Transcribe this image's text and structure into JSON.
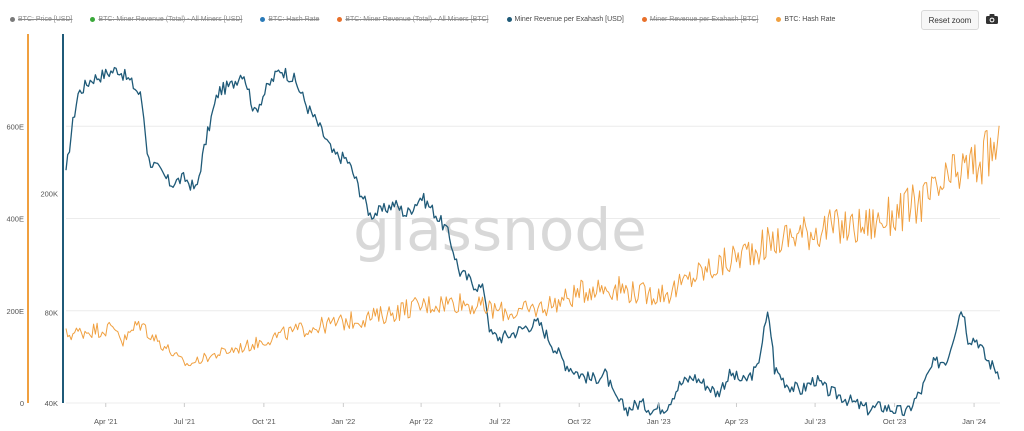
{
  "legend": {
    "items": [
      {
        "label": "BTC: Price [USD]",
        "color": "#7a7a7a",
        "visible": false
      },
      {
        "label": "BTC: Miner Revenue (Total) - All Miners [USD]",
        "color": "#3aa83a",
        "visible": false
      },
      {
        "label": "BTC: Hash Rate",
        "color": "#2a7ab8",
        "visible": false
      },
      {
        "label": "BTC: Miner Revenue (Total) - All Miners [BTC]",
        "color": "#e8702a",
        "visible": false
      },
      {
        "label": "Miner Revenue per Exahash [USD]",
        "color": "#1f5a78",
        "visible": true
      },
      {
        "label": "Miner Revenue per Exahash [BTC]",
        "color": "#e8702a",
        "visible": false
      },
      {
        "label": "BTC: Hash Rate",
        "color": "#f0a040",
        "visible": true
      }
    ]
  },
  "toolbar": {
    "reset_zoom_label": "Reset zoom",
    "camera_icon": "camera-icon"
  },
  "watermark": "glassnode",
  "chart_data": {
    "type": "line",
    "x_tick_labels": [
      "Apr '21",
      "Jul '21",
      "Oct '21",
      "Jan '22",
      "Apr '22",
      "Jul '22",
      "Oct '22",
      "Jan '23",
      "Apr '23",
      "Jul '23",
      "Oct '23",
      "Jan '24"
    ],
    "x_range": [
      "2021-02-14",
      "2024-01-31"
    ],
    "y_axes": [
      {
        "id": "hash_rate",
        "color": "#f0a040",
        "scale": "linear",
        "range": [
          0,
          800
        ],
        "tick_labels": [
          "0",
          "200E",
          "400E",
          "600E"
        ],
        "tick_values": [
          0,
          200,
          400,
          600
        ]
      },
      {
        "id": "revenue_per_eh",
        "color": "#1f5a78",
        "scale": "log",
        "range": [
          40000,
          680000
        ],
        "tick_labels": [
          "40K",
          "80K",
          "200K"
        ],
        "tick_values": [
          40000,
          80000,
          200000
        ]
      }
    ],
    "series": [
      {
        "name": "Miner Revenue per Exahash [USD]",
        "axis": "revenue_per_eh",
        "color": "#1f5a78",
        "points": [
          [
            "2021-02-14",
            230000
          ],
          [
            "2021-02-28",
            430000
          ],
          [
            "2021-03-15",
            480000
          ],
          [
            "2021-03-31",
            500000
          ],
          [
            "2021-04-15",
            520000
          ],
          [
            "2021-04-30",
            470000
          ],
          [
            "2021-05-12",
            420000
          ],
          [
            "2021-05-20",
            260000
          ],
          [
            "2021-06-01",
            240000
          ],
          [
            "2021-06-15",
            215000
          ],
          [
            "2021-07-01",
            225000
          ],
          [
            "2021-07-15",
            205000
          ],
          [
            "2021-07-25",
            290000
          ],
          [
            "2021-08-10",
            440000
          ],
          [
            "2021-08-25",
            460000
          ],
          [
            "2021-09-07",
            510000
          ],
          [
            "2021-09-20",
            370000
          ],
          [
            "2021-10-05",
            450000
          ],
          [
            "2021-10-20",
            520000
          ],
          [
            "2021-11-05",
            480000
          ],
          [
            "2021-11-20",
            390000
          ],
          [
            "2021-12-05",
            330000
          ],
          [
            "2021-12-20",
            270000
          ],
          [
            "2022-01-05",
            260000
          ],
          [
            "2022-01-20",
            205000
          ],
          [
            "2022-02-01",
            170000
          ],
          [
            "2022-02-15",
            175000
          ],
          [
            "2022-03-01",
            185000
          ],
          [
            "2022-03-15",
            170000
          ],
          [
            "2022-04-01",
            195000
          ],
          [
            "2022-04-15",
            175000
          ],
          [
            "2022-05-01",
            150000
          ],
          [
            "2022-05-15",
            110000
          ],
          [
            "2022-06-01",
            100000
          ],
          [
            "2022-06-13",
            95000
          ],
          [
            "2022-06-20",
            68000
          ],
          [
            "2022-07-01",
            66000
          ],
          [
            "2022-07-15",
            68000
          ],
          [
            "2022-08-01",
            72000
          ],
          [
            "2022-08-15",
            74000
          ],
          [
            "2022-09-01",
            62000
          ],
          [
            "2022-09-15",
            54000
          ],
          [
            "2022-10-01",
            50000
          ],
          [
            "2022-10-15",
            48000
          ],
          [
            "2022-11-01",
            50000
          ],
          [
            "2022-11-10",
            42000
          ],
          [
            "2022-11-25",
            38000
          ],
          [
            "2022-12-10",
            40000
          ],
          [
            "2022-12-25",
            38000
          ],
          [
            "2023-01-10",
            39000
          ],
          [
            "2023-01-25",
            46000
          ],
          [
            "2023-02-10",
            49000
          ],
          [
            "2023-02-25",
            46000
          ],
          [
            "2023-03-10",
            43000
          ],
          [
            "2023-03-25",
            50000
          ],
          [
            "2023-04-10",
            47000
          ],
          [
            "2023-04-25",
            52000
          ],
          [
            "2023-05-08",
            80000
          ],
          [
            "2023-05-15",
            52000
          ],
          [
            "2023-05-30",
            46000
          ],
          [
            "2023-06-15",
            44000
          ],
          [
            "2023-07-01",
            48000
          ],
          [
            "2023-07-15",
            44000
          ],
          [
            "2023-08-01",
            42000
          ],
          [
            "2023-08-15",
            40000
          ],
          [
            "2023-09-01",
            38000
          ],
          [
            "2023-09-15",
            39000
          ],
          [
            "2023-10-01",
            38000
          ],
          [
            "2023-10-15",
            37000
          ],
          [
            "2023-11-01",
            44000
          ],
          [
            "2023-11-15",
            54000
          ],
          [
            "2023-12-01",
            56000
          ],
          [
            "2023-12-10",
            70000
          ],
          [
            "2023-12-18",
            84000
          ],
          [
            "2023-12-25",
            66000
          ],
          [
            "2024-01-05",
            65000
          ],
          [
            "2024-01-15",
            56000
          ],
          [
            "2024-01-31",
            50000
          ]
        ]
      },
      {
        "name": "BTC: Hash Rate",
        "axis": "hash_rate",
        "color": "#f0a040",
        "points": [
          [
            "2021-02-14",
            148
          ],
          [
            "2021-03-15",
            158
          ],
          [
            "2021-04-15",
            163
          ],
          [
            "2021-04-20",
            130
          ],
          [
            "2021-05-10",
            175
          ],
          [
            "2021-05-25",
            145
          ],
          [
            "2021-06-10",
            120
          ],
          [
            "2021-06-25",
            95
          ],
          [
            "2021-07-05",
            82
          ],
          [
            "2021-07-20",
            95
          ],
          [
            "2021-08-15",
            110
          ],
          [
            "2021-09-15",
            125
          ],
          [
            "2021-10-15",
            145
          ],
          [
            "2021-11-15",
            160
          ],
          [
            "2021-12-15",
            170
          ],
          [
            "2022-01-15",
            180
          ],
          [
            "2022-02-15",
            190
          ],
          [
            "2022-03-15",
            205
          ],
          [
            "2022-04-15",
            215
          ],
          [
            "2022-05-15",
            220
          ],
          [
            "2022-06-15",
            205
          ],
          [
            "2022-07-15",
            195
          ],
          [
            "2022-08-15",
            205
          ],
          [
            "2022-09-15",
            225
          ],
          [
            "2022-10-15",
            250
          ],
          [
            "2022-11-15",
            250
          ],
          [
            "2022-12-15",
            235
          ],
          [
            "2023-01-15",
            240
          ],
          [
            "2023-02-15",
            280
          ],
          [
            "2023-03-15",
            300
          ],
          [
            "2023-04-15",
            330
          ],
          [
            "2023-05-15",
            350
          ],
          [
            "2023-06-15",
            370
          ],
          [
            "2023-07-15",
            380
          ],
          [
            "2023-08-15",
            380
          ],
          [
            "2023-09-15",
            395
          ],
          [
            "2023-10-15",
            420
          ],
          [
            "2023-11-15",
            450
          ],
          [
            "2023-12-15",
            500
          ],
          [
            "2024-01-05",
            520
          ],
          [
            "2024-01-20",
            540
          ],
          [
            "2024-01-31",
            560
          ]
        ]
      }
    ],
    "grid": true,
    "legend_position": "top-left"
  }
}
